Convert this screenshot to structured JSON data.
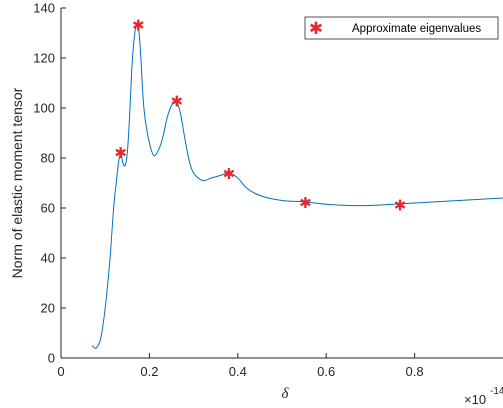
{
  "chart_data": {
    "type": "line",
    "xlabel": "δ",
    "ylabel": "Norm of elastic moment tensor",
    "xlim": [
      0,
      1
    ],
    "ylim": [
      0,
      140
    ],
    "x_exponent_label": "×10",
    "x_exponent": "-14",
    "x_ticks": [
      0,
      0.2,
      0.4,
      0.6,
      0.8
    ],
    "x_tick_labels": [
      "0",
      "0.2",
      "0.4",
      "0.6",
      "0.8"
    ],
    "y_ticks": [
      0,
      20,
      40,
      60,
      80,
      100,
      120,
      140
    ],
    "y_tick_labels": [
      "0",
      "20",
      "40",
      "60",
      "80",
      "100",
      "120",
      "140"
    ],
    "legend": {
      "label": "Approximate eigenvalues",
      "position": "top-right",
      "marker": "asterisk"
    },
    "colors": {
      "line": "#0072BD",
      "marker": "#E8262D",
      "axes": "#262626"
    },
    "grid": false,
    "series": [
      {
        "type": "line",
        "x": [
          0.07,
          0.08,
          0.09,
          0.1,
          0.11,
          0.115,
          0.12,
          0.125,
          0.13,
          0.135,
          0.14,
          0.145,
          0.15,
          0.155,
          0.16,
          0.165,
          0.17,
          0.175,
          0.18,
          0.185,
          0.19,
          0.2,
          0.21,
          0.22,
          0.23,
          0.24,
          0.25,
          0.26,
          0.27,
          0.28,
          0.29,
          0.3,
          0.32,
          0.34,
          0.36,
          0.38,
          0.4,
          0.42,
          0.45,
          0.5,
          0.55,
          0.6,
          0.65,
          0.7,
          0.75,
          0.8,
          0.85,
          0.9,
          0.95,
          1.0
        ],
        "y": [
          5,
          4,
          8,
          20,
          38,
          50,
          62,
          70,
          78,
          82,
          78,
          77,
          82,
          96,
          115,
          127,
          133,
          133,
          122,
          106,
          96,
          86,
          81,
          83,
          88,
          96,
          101,
          103,
          98,
          88,
          79,
          74,
          71,
          72,
          73,
          74,
          72,
          68,
          65,
          63,
          62.5,
          61.5,
          61,
          61,
          61.5,
          62,
          62.5,
          63,
          63.5,
          64
        ]
      }
    ],
    "markers": {
      "x": [
        0.135,
        0.175,
        0.262,
        0.38,
        0.553,
        0.767
      ],
      "y": [
        82.5,
        133.5,
        103,
        74,
        62.5,
        61.5
      ]
    }
  }
}
